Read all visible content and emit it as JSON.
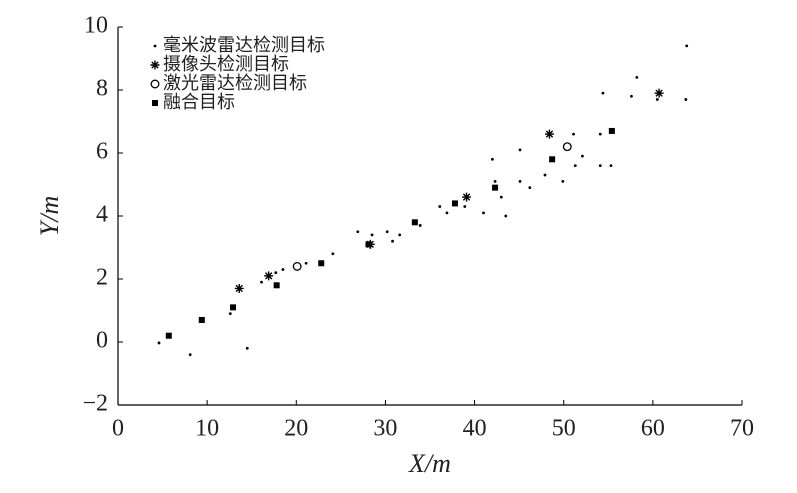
{
  "chart_data": {
    "type": "scatter",
    "x_label": "X/m",
    "y_label": "Y/m",
    "xlim": [
      0,
      70
    ],
    "xticks": [
      0,
      10,
      20,
      30,
      40,
      50,
      60,
      70
    ],
    "ylim": [
      -2,
      10
    ],
    "yticks": [
      {
        "value": -2,
        "label": "−2"
      },
      0,
      2,
      4,
      6,
      8,
      10
    ],
    "legend": "upper left",
    "color": "#000000",
    "series": [
      {
        "name": "毫米波雷达检测目标",
        "marker": "dot",
        "x": [
          4.6,
          8.1,
          14.5,
          12.6,
          16.1,
          17.7,
          18.5,
          21.1,
          24.1,
          26.9,
          28.5,
          30.2,
          30.8,
          31.6,
          33.9,
          36.1,
          36.9,
          38.9,
          41.0,
          42.0,
          42.3,
          43.0,
          43.5,
          45.1,
          45.1,
          46.2,
          47.9,
          49.9,
          51.1,
          51.3,
          52.1,
          54.1,
          55.3,
          54.1,
          54.4,
          57.6,
          58.2,
          60.5,
          63.7,
          63.8
        ],
        "y": [
          -0.03,
          -0.4,
          -0.2,
          0.9,
          1.9,
          2.2,
          2.3,
          2.5,
          2.8,
          3.5,
          3.4,
          3.5,
          3.2,
          3.4,
          3.7,
          4.3,
          4.1,
          4.3,
          4.1,
          5.8,
          5.1,
          4.6,
          4.0,
          6.1,
          5.1,
          4.9,
          5.3,
          5.1,
          6.6,
          5.6,
          5.9,
          5.6,
          5.6,
          6.6,
          7.9,
          7.8,
          8.4,
          7.7,
          7.7,
          9.4
        ]
      },
      {
        "name": "摄像头检测目标",
        "marker": "star",
        "x": [
          13.6,
          16.9,
          28.3,
          39.1,
          48.4,
          60.7
        ],
        "y": [
          1.7,
          2.1,
          3.1,
          4.6,
          6.6,
          7.9
        ]
      },
      {
        "name": "激光雷达检测目标",
        "marker": "circle",
        "x": [
          20.1,
          50.4
        ],
        "y": [
          2.4,
          6.2
        ]
      },
      {
        "name": "融合目标",
        "marker": "square",
        "x": [
          5.7,
          9.4,
          12.9,
          17.8,
          22.8,
          28.1,
          33.3,
          37.8,
          42.3,
          48.7,
          55.4
        ],
        "y": [
          0.2,
          0.7,
          1.1,
          1.8,
          2.5,
          3.1,
          3.8,
          4.4,
          4.9,
          5.8,
          6.7
        ]
      }
    ]
  }
}
